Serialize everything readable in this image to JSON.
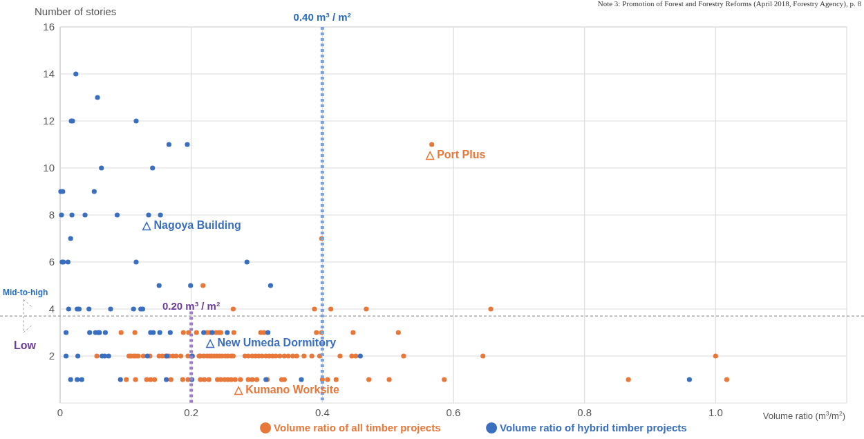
{
  "chart_data": {
    "type": "scatter",
    "xlabel": "Volume ratio (m$^{3}$/m$^{2}$)",
    "ylabel": "Number of stories",
    "xlim": [
      0,
      1.2
    ],
    "xticks": [
      0,
      0.2,
      0.4,
      0.6,
      0.8,
      {
        "value": 1,
        "label": "1.0"
      }
    ],
    "ylim": [
      0,
      16
    ],
    "yticks": [
      2,
      4,
      6,
      8,
      10,
      12,
      14,
      16
    ],
    "grid": true,
    "legend": "bottom",
    "marker": "circle",
    "series": [
      {
        "name": "Volume ratio of all timber projects",
        "color": "#e8773a",
        "x": [
          0.218,
          0.264,
          0.388,
          0.413,
          0.467,
          0.657,
          0.093,
          0.114,
          0.188,
          0.196,
          0.208,
          0.224,
          0.228,
          0.238,
          0.242,
          0.245,
          0.265,
          0.306,
          0.311,
          0.391,
          0.399,
          0.447,
          0.516,
          0.056,
          0.105,
          0.108,
          0.112,
          0.115,
          0.119,
          0.127,
          0.137,
          0.151,
          0.156,
          0.161,
          0.166,
          0.172,
          0.177,
          0.184,
          0.195,
          0.202,
          0.212,
          0.224,
          0.214,
          0.219,
          0.228,
          0.231,
          0.235,
          0.239,
          0.243,
          0.247,
          0.252,
          0.256,
          0.261,
          0.264,
          0.282,
          0.287,
          0.293,
          0.298,
          0.303,
          0.308,
          0.314,
          0.319,
          0.324,
          0.329,
          0.335,
          0.342,
          0.348,
          0.355,
          0.361,
          0.372,
          0.384,
          0.396,
          0.427,
          0.445,
          0.451,
          0.524,
          0.645,
          1.0,
          0.101,
          0.115,
          0.132,
          0.138,
          0.144,
          0.169,
          0.187,
          0.195,
          0.214,
          0.22,
          0.227,
          0.24,
          0.245,
          0.251,
          0.256,
          0.261,
          0.267,
          0.275,
          0.287,
          0.293,
          0.3,
          0.316,
          0.338,
          0.342,
          0.4,
          0.408,
          0.421,
          0.471,
          0.502,
          0.586,
          0.867,
          1.017,
          0.399,
          0.567
        ],
        "values": [
          5,
          4,
          4,
          4,
          4,
          4,
          3,
          3,
          3,
          3,
          3,
          3,
          3,
          3,
          3,
          3,
          3,
          3,
          3,
          3,
          3,
          3,
          3,
          2,
          2,
          2,
          2,
          2,
          2,
          2,
          2,
          2,
          2,
          2,
          2,
          2,
          2,
          2,
          2,
          2,
          2,
          2,
          2,
          2,
          2,
          2,
          2,
          2,
          2,
          2,
          2,
          2,
          2,
          2,
          2,
          2,
          2,
          2,
          2,
          2,
          2,
          2,
          2,
          2,
          2,
          2,
          2,
          2,
          2,
          2,
          2,
          2,
          2,
          2,
          2,
          2,
          2,
          2,
          1,
          1,
          1,
          1,
          1,
          1,
          1,
          1,
          1,
          1,
          1,
          1,
          1,
          1,
          1,
          1,
          1,
          1,
          1,
          1,
          1,
          1,
          1,
          1,
          1,
          1,
          1,
          1,
          1,
          1,
          1,
          1,
          7,
          11
        ]
      },
      {
        "name": "Volume ratio of hybrid timber projects",
        "color": "#3a6fbf",
        "x": [
          0.024,
          0.057,
          0.017,
          0.019,
          0.116,
          0.166,
          0.194,
          0.063,
          0.141,
          0.001,
          0.004,
          0.052,
          0.002,
          0.018,
          0.038,
          0.087,
          0.135,
          0.153,
          0.016,
          0.003,
          0.005,
          0.012,
          0.116,
          0.285,
          0.151,
          0.199,
          0.321,
          0.013,
          0.026,
          0.029,
          0.044,
          0.077,
          0.112,
          0.123,
          0.126,
          0.009,
          0.045,
          0.054,
          0.058,
          0.06,
          0.069,
          0.138,
          0.142,
          0.152,
          0.168,
          0.219,
          0.232,
          0.255,
          0.317,
          0.009,
          0.027,
          0.064,
          0.068,
          0.074,
          0.133,
          0.163,
          0.201,
          0.458,
          0.016,
          0.026,
          0.033,
          0.092,
          0.162,
          0.201,
          0.314,
          0.368,
          0.96
        ],
        "values": [
          14,
          13,
          12,
          12,
          12,
          11,
          11,
          10,
          10,
          9,
          9,
          9,
          8,
          8,
          8,
          8,
          8,
          8,
          7,
          6,
          6,
          6,
          6,
          6,
          5,
          5,
          5,
          4,
          4,
          4,
          4,
          4,
          4,
          4,
          4,
          3,
          3,
          3,
          3,
          3,
          3,
          3,
          3,
          3,
          3,
          3,
          3,
          3,
          3,
          2,
          2,
          2,
          2,
          2,
          2,
          2,
          2,
          2,
          1,
          1,
          1,
          1,
          1,
          1,
          1,
          1,
          1
        ]
      }
    ],
    "ref_lines": [
      {
        "axis": "x",
        "value": 0.4,
        "label": "0.40 m$^{3}$ / m$^{2}$",
        "color": "#7f9fd8",
        "line_style": "dotted"
      },
      {
        "axis": "x",
        "value": 0.2,
        "label": "0.20 m$^{3}$ / m$^{2}$",
        "color": "#9b7fc0",
        "line_style": "dotted"
      },
      {
        "axis": "y",
        "value": 3.7,
        "color": "#999999",
        "line_style": "dashed"
      }
    ],
    "annotations": [
      {
        "text": "△ Port Plus",
        "x": 0.567,
        "y": 11
      },
      {
        "text": "△ Nagoya Building",
        "x": 0.135,
        "y": 8
      },
      {
        "text": "△ New Umeda Dormitory",
        "x": 0.232,
        "y": 3
      },
      {
        "text": "△ Kumano Worksite",
        "x": 0.275,
        "y": 1
      },
      "Mid-to-high",
      "Low",
      "Note 3: Promotion of Forest and Forestry Reforms (April 2018, Forestry Agency), p. 8"
    ]
  }
}
